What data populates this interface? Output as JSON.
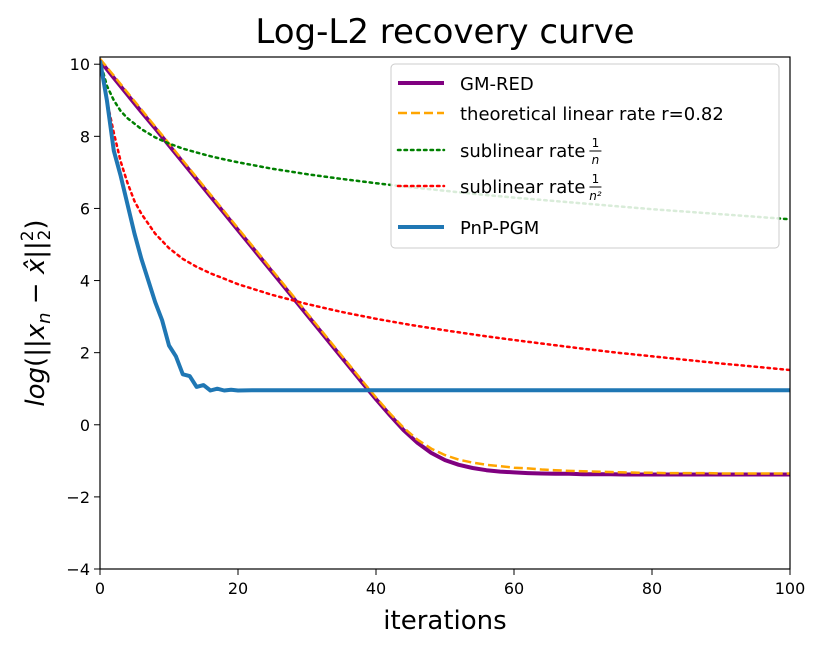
{
  "chart_data": {
    "type": "line",
    "title": "Log-L2 recovery curve",
    "xlabel": "iterations",
    "ylabel": "log(||x_n − x̂||²₂)",
    "xlim": [
      0,
      100
    ],
    "ylim": [
      -4,
      10.2
    ],
    "xticks": [
      0,
      20,
      40,
      60,
      80,
      100
    ],
    "xtick_labels": [
      "0",
      "20",
      "40",
      "60",
      "80",
      "100"
    ],
    "yticks": [
      -4,
      -2,
      0,
      2,
      4,
      6,
      8,
      10
    ],
    "ytick_labels": [
      "−4",
      "−2",
      "0",
      "2",
      "4",
      "6",
      "8",
      "10"
    ],
    "grid": false,
    "legend_position": "top-right",
    "series": [
      {
        "name": "GM-RED",
        "label": "GM-RED",
        "color": "#800080",
        "style": "solid",
        "width": 4,
        "x": [
          0,
          2,
          4,
          6,
          8,
          10,
          12,
          14,
          16,
          18,
          20,
          22,
          24,
          26,
          28,
          30,
          32,
          34,
          36,
          38,
          40,
          42,
          44,
          46,
          48,
          50,
          52,
          54,
          56,
          58,
          60,
          62,
          64,
          66,
          68,
          70,
          72,
          74,
          76,
          78,
          80,
          82,
          84,
          86,
          88,
          90,
          92,
          94,
          96,
          98,
          100
        ],
        "y": [
          10.1,
          9.62,
          9.15,
          8.68,
          8.22,
          7.75,
          7.28,
          6.81,
          6.34,
          5.87,
          5.4,
          4.93,
          4.46,
          3.99,
          3.52,
          3.05,
          2.58,
          2.11,
          1.64,
          1.17,
          0.71,
          0.27,
          -0.15,
          -0.5,
          -0.78,
          -0.98,
          -1.11,
          -1.2,
          -1.26,
          -1.3,
          -1.32,
          -1.34,
          -1.35,
          -1.36,
          -1.36,
          -1.37,
          -1.37,
          -1.37,
          -1.38,
          -1.38,
          -1.38,
          -1.38,
          -1.38,
          -1.38,
          -1.38,
          -1.38,
          -1.38,
          -1.38,
          -1.38,
          -1.38,
          -1.38
        ]
      },
      {
        "name": "theoretical linear rate",
        "label": "theoretical linear rate r=0.82",
        "color": "#ffa500",
        "style": "dashed",
        "width": 2.5,
        "x": [
          0,
          2,
          4,
          6,
          8,
          10,
          12,
          14,
          16,
          18,
          20,
          22,
          24,
          26,
          28,
          30,
          32,
          34,
          36,
          38,
          40,
          42,
          44,
          46,
          48,
          50,
          52,
          54,
          56,
          58,
          60,
          62,
          64,
          66,
          68,
          70,
          72,
          74,
          76,
          78,
          80,
          82,
          84,
          86,
          88,
          90,
          92,
          94,
          96,
          98,
          100
        ],
        "y": [
          10.15,
          9.68,
          9.21,
          8.74,
          8.27,
          7.8,
          7.33,
          6.86,
          6.39,
          5.92,
          5.45,
          4.98,
          4.51,
          4.04,
          3.57,
          3.1,
          2.63,
          2.16,
          1.69,
          1.22,
          0.76,
          0.32,
          -0.08,
          -0.41,
          -0.66,
          -0.84,
          -0.97,
          -1.05,
          -1.11,
          -1.15,
          -1.19,
          -1.21,
          -1.24,
          -1.26,
          -1.28,
          -1.29,
          -1.3,
          -1.31,
          -1.32,
          -1.33,
          -1.33,
          -1.34,
          -1.34,
          -1.34,
          -1.34,
          -1.35,
          -1.35,
          -1.35,
          -1.35,
          -1.35,
          -1.35
        ]
      },
      {
        "name": "sublinear rate 1/n",
        "label": "sublinear rate",
        "frac_num": "1",
        "frac_den": "n",
        "color": "#008000",
        "style": "dotted",
        "width": 2.5,
        "x": [
          0,
          1,
          2,
          3,
          4,
          5,
          6,
          8,
          10,
          12,
          14,
          16,
          18,
          20,
          25,
          30,
          35,
          40,
          45,
          50,
          55,
          60,
          65,
          70,
          75,
          80,
          85,
          90,
          95,
          100
        ],
        "y": [
          10.1,
          9.4,
          9.0,
          8.7,
          8.5,
          8.35,
          8.2,
          7.97,
          7.8,
          7.66,
          7.55,
          7.45,
          7.36,
          7.28,
          7.1,
          6.95,
          6.82,
          6.7,
          6.59,
          6.49,
          6.39,
          6.3,
          6.22,
          6.14,
          6.06,
          5.98,
          5.91,
          5.84,
          5.77,
          5.7
        ]
      },
      {
        "name": "sublinear rate 1/n^2",
        "label": "sublinear rate",
        "frac_num": "1",
        "frac_den": "n²",
        "color": "#ff0000",
        "style": "dotted",
        "width": 2.5,
        "x": [
          0,
          1,
          2,
          3,
          4,
          5,
          6,
          8,
          10,
          12,
          14,
          16,
          18,
          20,
          25,
          30,
          35,
          40,
          45,
          50,
          55,
          60,
          65,
          70,
          75,
          80,
          85,
          90,
          95,
          100
        ],
        "y": [
          10.1,
          9.0,
          8.1,
          7.3,
          6.7,
          6.2,
          5.85,
          5.3,
          4.9,
          4.6,
          4.38,
          4.2,
          4.05,
          3.9,
          3.6,
          3.35,
          3.13,
          2.94,
          2.77,
          2.62,
          2.48,
          2.35,
          2.23,
          2.11,
          2.0,
          1.9,
          1.8,
          1.7,
          1.61,
          1.52
        ]
      },
      {
        "name": "PnP-PGM",
        "label": "PnP-PGM",
        "color": "#1f77b4",
        "style": "solid",
        "width": 4,
        "x": [
          0,
          1,
          2,
          3,
          4,
          5,
          6,
          7,
          8,
          9,
          10,
          11,
          12,
          13,
          14,
          15,
          16,
          17,
          18,
          19,
          20,
          22,
          25,
          30,
          40,
          50,
          60,
          70,
          80,
          90,
          100
        ],
        "y": [
          10.1,
          9.0,
          7.6,
          6.9,
          6.1,
          5.3,
          4.6,
          4.0,
          3.4,
          2.9,
          2.2,
          1.9,
          1.4,
          1.35,
          1.05,
          1.1,
          0.95,
          1.0,
          0.95,
          0.97,
          0.95,
          0.96,
          0.96,
          0.96,
          0.96,
          0.96,
          0.96,
          0.96,
          0.96,
          0.96,
          0.96
        ]
      }
    ]
  }
}
